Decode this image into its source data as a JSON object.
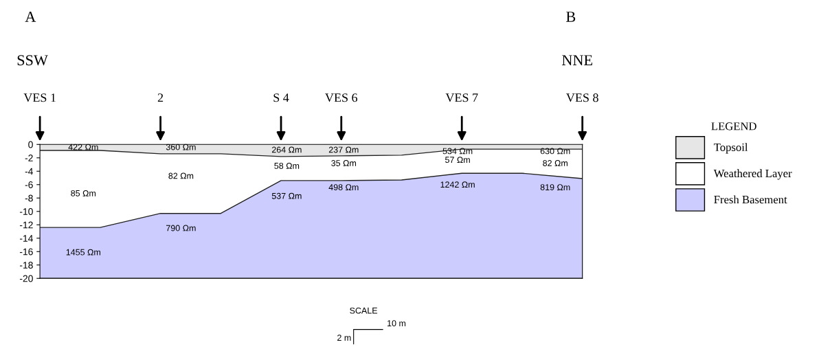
{
  "chart_data": {
    "type": "area",
    "categories": [
      "VES 1",
      null,
      "2",
      null,
      "S 4",
      "VES 6",
      null,
      "VES 7",
      null,
      "VES 8"
    ],
    "series": [
      {
        "name": "Topsoil",
        "color": "#e6e6e6",
        "values": [
          -0.9,
          -0.9,
          -1.4,
          -1.4,
          -1.8,
          -1.7,
          -1.6,
          -0.7,
          -0.7,
          -0.7
        ]
      },
      {
        "name": "Weathered Layer",
        "color": "#ffffff",
        "values": [
          -12.4,
          -12.4,
          -10.3,
          -10.3,
          -5.4,
          -5.4,
          -5.3,
          -4.3,
          -4.3,
          -5.1
        ]
      },
      {
        "name": "Fresh Basement",
        "color": "#ccccff",
        "values": [
          -20,
          -20,
          -20,
          -20,
          -20,
          -20,
          -20,
          -20,
          -20,
          -20
        ]
      }
    ],
    "ylim": [
      -20,
      0
    ],
    "yticks": [
      0,
      -2,
      -4,
      -6,
      -8,
      -10,
      -12,
      -14,
      -16,
      -18,
      -20
    ],
    "legend": "right",
    "legend_title": "LEGEND",
    "annotations": [
      "422 Ωm",
      "85 Ωm",
      "1455 Ωm",
      "360 Ωm",
      "82 Ωm",
      "790 Ωm",
      "264 Ωm",
      "58 Ωm",
      "537 Ωm",
      "237 Ωm",
      "35 Ωm",
      "498 Ωm",
      "534 Ωm",
      "57 Ωm",
      "1242 Ωm",
      "630 Ωm",
      "82 Ωm",
      "819 Ωm",
      "A",
      "B",
      "SSW",
      "NNE",
      "SCALE",
      "10 m",
      "2 m"
    ]
  }
}
